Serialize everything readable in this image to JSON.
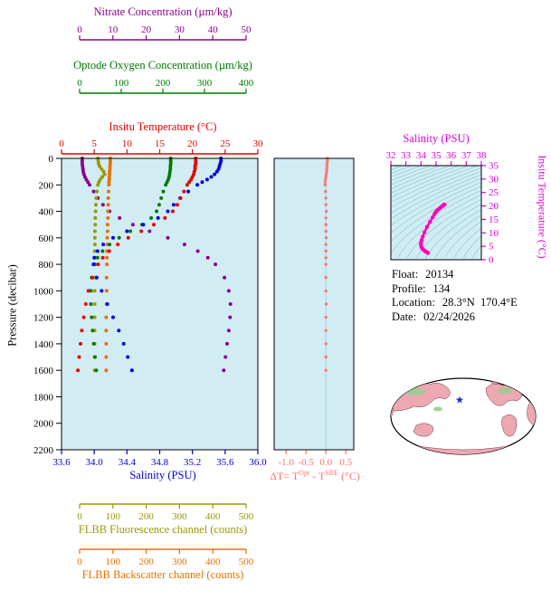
{
  "figure": {
    "float_info": {
      "float_label": "Float:",
      "float_value": "20134",
      "profile_label": "Profile:",
      "profile_value": "134",
      "location_label": "Location:",
      "location_value": "28.3°N  170.4°E",
      "date_label": "Date:",
      "date_value": "02/24/2026"
    }
  },
  "colors": {
    "plot_bg": "#D2ECF4",
    "contour": "#8CCBD4",
    "frame": "#000000"
  },
  "map": {
    "star_color": "#2233BB"
  },
  "chart_data": [
    {
      "id": "profiles",
      "type": "scatter",
      "grid": false,
      "ylabel": "Pressure (decibar)",
      "ylim": [
        0,
        2200
      ],
      "y_ticks": [
        "0",
        "200",
        "400",
        "600",
        "800",
        "1000",
        "1200",
        "1400",
        "1600",
        "1800",
        "2000",
        "2200"
      ],
      "pressure_dbar": [
        0,
        20,
        40,
        60,
        80,
        100,
        120,
        140,
        160,
        180,
        200,
        250,
        300,
        350,
        400,
        450,
        500,
        550,
        600,
        650,
        700,
        750,
        800,
        900,
        1000,
        1100,
        1200,
        1300,
        1400,
        1500,
        1600
      ],
      "series": [
        {
          "id": "temperature",
          "name": "Insitu Temperature",
          "axis_label": "Insitu Temperature (°C)",
          "color": "#E60000",
          "span": "full",
          "xlim": [
            0,
            30
          ],
          "ticks": [
            "0",
            "5",
            "10",
            "15",
            "20",
            "25",
            "30"
          ],
          "values": [
            20.5,
            20.5,
            20.5,
            20.4,
            20.4,
            20.3,
            20.2,
            20.0,
            19.8,
            19.5,
            19.2,
            18.7,
            18.2,
            17.7,
            17.0,
            15.8,
            14.1,
            12.2,
            10.2,
            8.6,
            7.3,
            6.3,
            5.6,
            4.7,
            4.1,
            3.7,
            3.4,
            3.1,
            2.9,
            2.7,
            2.5
          ]
        },
        {
          "id": "salinity",
          "name": "Salinity",
          "axis_label": "Salinity (PSU)",
          "color": "#0000DD",
          "span": "full",
          "xlim": [
            33.6,
            36.0
          ],
          "ticks": [
            "33.6",
            "34.0",
            "34.4",
            "34.8",
            "35.2",
            "35.6",
            "36.0"
          ],
          "values": [
            35.55,
            35.55,
            35.54,
            35.53,
            35.52,
            35.5,
            35.47,
            35.43,
            35.38,
            35.32,
            35.26,
            35.15,
            35.05,
            34.97,
            34.9,
            34.78,
            34.6,
            34.4,
            34.23,
            34.11,
            34.04,
            34.0,
            33.99,
            34.03,
            34.09,
            34.16,
            34.23,
            34.3,
            34.36,
            34.41,
            34.46
          ]
        },
        {
          "id": "oxygen",
          "name": "Optode Oxygen Concentration",
          "axis_label": "Optode Oxygen Concentration (µm/kg)",
          "color": "#007A00",
          "span": "aux",
          "xlim": [
            0,
            400
          ],
          "ticks": [
            "0",
            "100",
            "200",
            "300",
            "400"
          ],
          "values": [
            219,
            219,
            219,
            218,
            218,
            217,
            216,
            215,
            213,
            210,
            207,
            201,
            196,
            191,
            185,
            172,
            150,
            122,
            95,
            72,
            55,
            43,
            36,
            29,
            27,
            27,
            29,
            31,
            34,
            37,
            40
          ]
        },
        {
          "id": "nitrate",
          "name": "Nitrate Concentration",
          "axis_label": "Nitrate Concentration (µm/kg)",
          "color": "#8B008B",
          "span": "aux",
          "xlim": [
            0,
            50
          ],
          "ticks": [
            "0",
            "10",
            "20",
            "30",
            "40",
            "50"
          ],
          "values": [
            0.8,
            0.8,
            0.8,
            0.9,
            1.0,
            1.1,
            1.3,
            1.6,
            2.0,
            2.5,
            3.0,
            4.2,
            5.5,
            7.0,
            9.0,
            12.0,
            16.0,
            21.0,
            26.5,
            31.5,
            35.5,
            38.5,
            40.8,
            43.5,
            44.8,
            45.3,
            45.2,
            44.8,
            44.3,
            43.8,
            43.3
          ]
        },
        {
          "id": "fluorescence",
          "name": "FLBB Fluorescence channel",
          "axis_label": "FLBB Fluorescence channel (counts)",
          "color": "#999900",
          "span": "aux",
          "xlim": [
            0,
            500
          ],
          "ticks": [
            "0",
            "100",
            "200",
            "300",
            "400",
            "500"
          ],
          "values": [
            55,
            56,
            57,
            60,
            66,
            72,
            75,
            68,
            62,
            58,
            55,
            52,
            50,
            49,
            48,
            47,
            47,
            46,
            46,
            46,
            45,
            45,
            45,
            45,
            45,
            45,
            45,
            45,
            45,
            45,
            45
          ]
        },
        {
          "id": "backscatter",
          "name": "FLBB Backscatter channel",
          "axis_label": "FLBB Backscatter channel (counts)",
          "color": "#E87000",
          "span": "aux",
          "xlim": [
            0,
            500
          ],
          "ticks": [
            "0",
            "100",
            "200",
            "300",
            "400",
            "500"
          ],
          "values": [
            92,
            92,
            92,
            91,
            91,
            90,
            90,
            89,
            89,
            88,
            88,
            87,
            86,
            86,
            85,
            85,
            84,
            84,
            83,
            83,
            82,
            82,
            82,
            81,
            81,
            81,
            80,
            80,
            80,
            80,
            80
          ]
        }
      ]
    },
    {
      "id": "delta_t",
      "type": "scatter",
      "grid": false,
      "xlabel_parts": {
        "pre": "ΔT= T",
        "sup1": "Opt",
        "mid": " - T",
        "sup2": "SBE",
        "post": " (°C)"
      },
      "xlim": [
        -1.3,
        0.7
      ],
      "x_ticks": [
        "-1.0",
        "-0.5",
        "0.0",
        "0.5"
      ],
      "color": "#FF7575",
      "pressure_source": "profiles",
      "values": [
        0.04,
        0.04,
        0.03,
        0.03,
        0.02,
        0.02,
        0.01,
        0.0,
        -0.01,
        -0.02,
        -0.02,
        -0.01,
        0.0,
        0.0,
        0.01,
        0.0,
        0.0,
        0.0,
        0.01,
        0.0,
        0.0,
        0.0,
        0.0,
        0.0,
        0.0,
        0.01,
        0.0,
        0.0,
        0.0,
        0.0,
        0.0
      ]
    },
    {
      "id": "ts_diagram",
      "type": "scatter",
      "grid": false,
      "xlabel": "Salinity (PSU)",
      "xlim": [
        32,
        38
      ],
      "x_ticks": [
        "32",
        "33",
        "34",
        "35",
        "36",
        "37",
        "38"
      ],
      "ylabel": "Insitu Temperature (°C)",
      "ylim": [
        0,
        35
      ],
      "y_ticks": [
        "0",
        "5",
        "10",
        "15",
        "20",
        "25",
        "30",
        "35"
      ],
      "color_axis": "#DD00DD",
      "color_points": "#FF00BB",
      "points_source": "temperature and salinity profiles",
      "contours": "sigma-theta density isolines"
    }
  ]
}
